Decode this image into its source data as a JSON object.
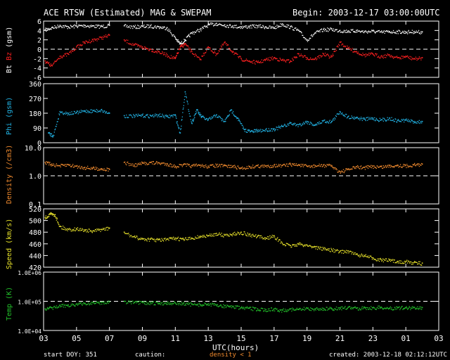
{
  "header": {
    "title": "ACE RTSW (Estimated) MAG & SWEPAM",
    "begin": "Begin: 2003-12-17 03:00:00UTC"
  },
  "footer": {
    "start_doy": "start DOY: 351",
    "caution": "caution:",
    "density_note": "density < 1",
    "created": "created: 2003-12-18 02:12:12UTC"
  },
  "colors": {
    "bt": "#ffffff",
    "bz": "#ff2020",
    "phi": "#22b4e6",
    "density": "#f08a2e",
    "speed": "#e6e02a",
    "temp": "#22c22a",
    "frame": "#ffffff"
  },
  "chart_data": [
    {
      "type": "scatter",
      "panel": "mag",
      "ylabel_parts": [
        "Bt",
        "Bz",
        "(gsm)"
      ],
      "ylim": [
        -6,
        6
      ],
      "yticks": [
        "6",
        "4",
        "2",
        "0",
        "-2",
        "-4",
        "-6"
      ],
      "ref_line": 0,
      "series": [
        {
          "name": "Bt",
          "x": [
            3.1,
            3.5,
            4,
            4.5,
            5,
            5.5,
            6,
            6.5,
            7,
            7.9,
            8.5,
            9,
            9.5,
            10,
            10.5,
            11,
            11.3,
            11.6,
            12,
            12.5,
            13,
            13.5,
            14,
            14.5,
            15,
            15.5,
            16,
            16.5,
            17,
            17.5,
            18,
            18.5,
            19,
            19.5,
            20,
            20.5,
            21,
            21.5,
            22,
            22.5,
            23,
            23.5,
            24,
            24.5,
            25,
            25.5,
            26
          ],
          "y": [
            4.2,
            4.6,
            5.1,
            4.8,
            5.0,
            5.1,
            5.0,
            4.9,
            5.1,
            5.0,
            4.8,
            4.9,
            5.0,
            4.8,
            4.6,
            2.5,
            1.2,
            2.0,
            3.5,
            4.2,
            5.2,
            5.5,
            5.2,
            5.0,
            4.8,
            4.9,
            5.0,
            4.8,
            4.6,
            5.4,
            4.8,
            4.0,
            2.0,
            3.5,
            4.2,
            4.3,
            4.0,
            3.9,
            4.0,
            3.8,
            3.9,
            3.7,
            3.8,
            3.8,
            3.7,
            3.8,
            3.7
          ]
        },
        {
          "name": "Bz",
          "x": [
            3.1,
            3.5,
            4,
            4.5,
            5,
            5.5,
            6,
            6.5,
            7,
            7.9,
            8.5,
            9,
            9.5,
            10,
            10.5,
            11,
            11.3,
            11.6,
            12,
            12.5,
            13,
            13.5,
            14,
            14.5,
            15,
            15.5,
            16,
            16.5,
            17,
            17.5,
            18,
            18.5,
            19,
            19.5,
            20,
            20.5,
            21,
            21.5,
            22,
            22.5,
            23,
            23.5,
            24,
            24.5,
            25,
            25.5,
            26
          ],
          "y": [
            -2.5,
            -3.5,
            -1.5,
            -1.0,
            0.5,
            1.5,
            2.0,
            2.5,
            3.0,
            2.0,
            1.0,
            0.5,
            0.0,
            -0.5,
            -1.2,
            -2.0,
            0.5,
            1.2,
            -0.5,
            -2.2,
            0.5,
            -1.0,
            1.5,
            -0.5,
            -2.0,
            -2.5,
            -2.8,
            -2.2,
            -1.8,
            -2.3,
            -2.5,
            -1.0,
            -1.8,
            -2.0,
            -1.0,
            -1.6,
            1.5,
            0.3,
            -0.5,
            -1.2,
            -1.0,
            -1.5,
            -1.2,
            -1.8,
            -1.5,
            -2.0,
            -1.8
          ]
        }
      ]
    },
    {
      "type": "scatter",
      "panel": "phi",
      "ylabel": "Phi (gsm)",
      "ylim": [
        0,
        360
      ],
      "yticks": [
        "360",
        "270",
        "180",
        "90",
        "0"
      ],
      "series": [
        {
          "name": "Phi",
          "x": [
            3.3,
            3.6,
            4.0,
            4.5,
            5.0,
            5.5,
            6.0,
            6.5,
            7.0,
            7.9,
            8.5,
            9,
            9.5,
            10,
            10.5,
            11,
            11.3,
            11.6,
            12,
            12.3,
            12.6,
            13,
            13.5,
            14,
            14.4,
            14.8,
            15.2,
            15.6,
            16,
            16.5,
            17,
            17.5,
            18,
            18.5,
            19,
            19.5,
            20,
            20.5,
            21,
            21.5,
            22,
            22.5,
            23,
            23.5,
            24,
            24.5,
            25,
            25.5,
            26
          ],
          "y": [
            60,
            45,
            190,
            180,
            185,
            195,
            195,
            200,
            180,
            165,
            165,
            168,
            165,
            170,
            160,
            170,
            60,
            310,
            120,
            200,
            160,
            140,
            170,
            130,
            200,
            150,
            80,
            70,
            75,
            80,
            85,
            100,
            120,
            110,
            130,
            110,
            135,
            130,
            190,
            160,
            155,
            145,
            150,
            140,
            150,
            135,
            140,
            130,
            130
          ]
        }
      ]
    },
    {
      "type": "scatter",
      "panel": "density",
      "ylabel": "Density (/cm3)",
      "yscale": "log",
      "ylim": [
        0.1,
        10.0
      ],
      "yticks": [
        "10.0",
        "1.0",
        "0.1"
      ],
      "ref_line": 1.0,
      "series": [
        {
          "name": "Density",
          "x": [
            3.1,
            3.5,
            4,
            4.5,
            5,
            5.5,
            6,
            6.5,
            7,
            7.9,
            8.5,
            9,
            9.5,
            10,
            10.5,
            11,
            11.5,
            12,
            12.5,
            13,
            13.5,
            14,
            14.5,
            15,
            15.5,
            16,
            16.5,
            17,
            17.5,
            18,
            18.5,
            19,
            19.5,
            20,
            20.5,
            21,
            21.5,
            22,
            22.5,
            23,
            23.5,
            24,
            24.5,
            25,
            25.5,
            26
          ],
          "y": [
            3.0,
            2.6,
            2.3,
            2.5,
            2.2,
            2.0,
            1.9,
            1.8,
            1.7,
            3.0,
            2.4,
            2.8,
            3.0,
            2.9,
            2.7,
            2.2,
            2.5,
            2.3,
            2.4,
            2.2,
            2.4,
            2.3,
            2.2,
            1.9,
            2.1,
            2.3,
            2.2,
            2.4,
            2.3,
            2.6,
            2.5,
            2.2,
            2.3,
            2.4,
            2.3,
            1.4,
            1.7,
            2.1,
            2.0,
            2.2,
            2.1,
            2.3,
            2.4,
            2.3,
            2.5,
            2.6
          ]
        }
      ]
    },
    {
      "type": "scatter",
      "panel": "speed",
      "ylabel": "Speed (km/s)",
      "ylim": [
        420,
        520
      ],
      "yticks": [
        "520",
        "500",
        "480",
        "460",
        "440",
        "420"
      ],
      "series": [
        {
          "name": "Speed",
          "x": [
            3.1,
            3.4,
            3.7,
            4,
            4.5,
            5,
            5.5,
            6,
            6.5,
            7,
            7.9,
            8.5,
            9,
            9.5,
            10,
            10.5,
            11,
            11.5,
            12,
            12.5,
            13,
            13.5,
            14,
            14.5,
            15,
            15.5,
            16,
            16.5,
            17,
            17.5,
            18,
            18.5,
            19,
            19.5,
            20,
            20.5,
            21,
            21.5,
            22,
            22.5,
            23,
            23.5,
            24,
            24.5,
            25,
            25.5,
            26
          ],
          "y": [
            505,
            512,
            510,
            490,
            485,
            486,
            484,
            482,
            485,
            487,
            480,
            472,
            469,
            468,
            467,
            468,
            470,
            468,
            470,
            473,
            474,
            478,
            475,
            477,
            480,
            476,
            473,
            470,
            474,
            461,
            457,
            460,
            458,
            455,
            452,
            450,
            447,
            448,
            442,
            440,
            436,
            433,
            432,
            430,
            430,
            428,
            427
          ]
        }
      ]
    },
    {
      "type": "scatter",
      "panel": "temp",
      "ylabel": "Temp (K)",
      "yscale": "log",
      "ylim": [
        10000,
        1000000
      ],
      "yticks": [
        "1.0E+06",
        "1.0E+05",
        "1.0E+04"
      ],
      "ref_line": 100000,
      "series": [
        {
          "name": "Temp",
          "x": [
            3.1,
            3.5,
            4,
            4.5,
            5,
            5.5,
            6,
            6.5,
            7,
            7.9,
            8.5,
            9,
            9.5,
            10,
            10.5,
            11,
            11.5,
            12,
            12.5,
            13,
            13.5,
            14,
            14.5,
            15,
            15.5,
            16,
            16.5,
            17,
            17.5,
            18,
            18.5,
            19,
            19.5,
            20,
            20.5,
            21,
            21.5,
            22,
            22.5,
            23,
            23.5,
            24,
            24.5,
            25,
            25.5,
            26
          ],
          "y": [
            55000,
            60000,
            70000,
            75000,
            80000,
            85000,
            90000,
            92000,
            95000,
            100000,
            92000,
            90000,
            88000,
            87000,
            90000,
            88000,
            85000,
            80000,
            78000,
            82000,
            75000,
            70000,
            68000,
            60000,
            58000,
            55000,
            52000,
            55000,
            50000,
            55000,
            52000,
            58000,
            55000,
            57000,
            56000,
            60000,
            62000,
            58000,
            62000,
            60000,
            63000,
            58000,
            62000,
            60000,
            62000,
            61000
          ]
        }
      ]
    }
  ],
  "x_axis": {
    "label": "UTC(hours)",
    "xlim": [
      3,
      27
    ],
    "tick_hours": [
      3,
      5,
      7,
      9,
      11,
      13,
      15,
      17,
      19,
      21,
      23,
      25,
      27
    ],
    "tick_labels": [
      "03",
      "05",
      "07",
      "09",
      "11",
      "13",
      "15",
      "17",
      "19",
      "21",
      "23",
      "01",
      "03"
    ]
  }
}
